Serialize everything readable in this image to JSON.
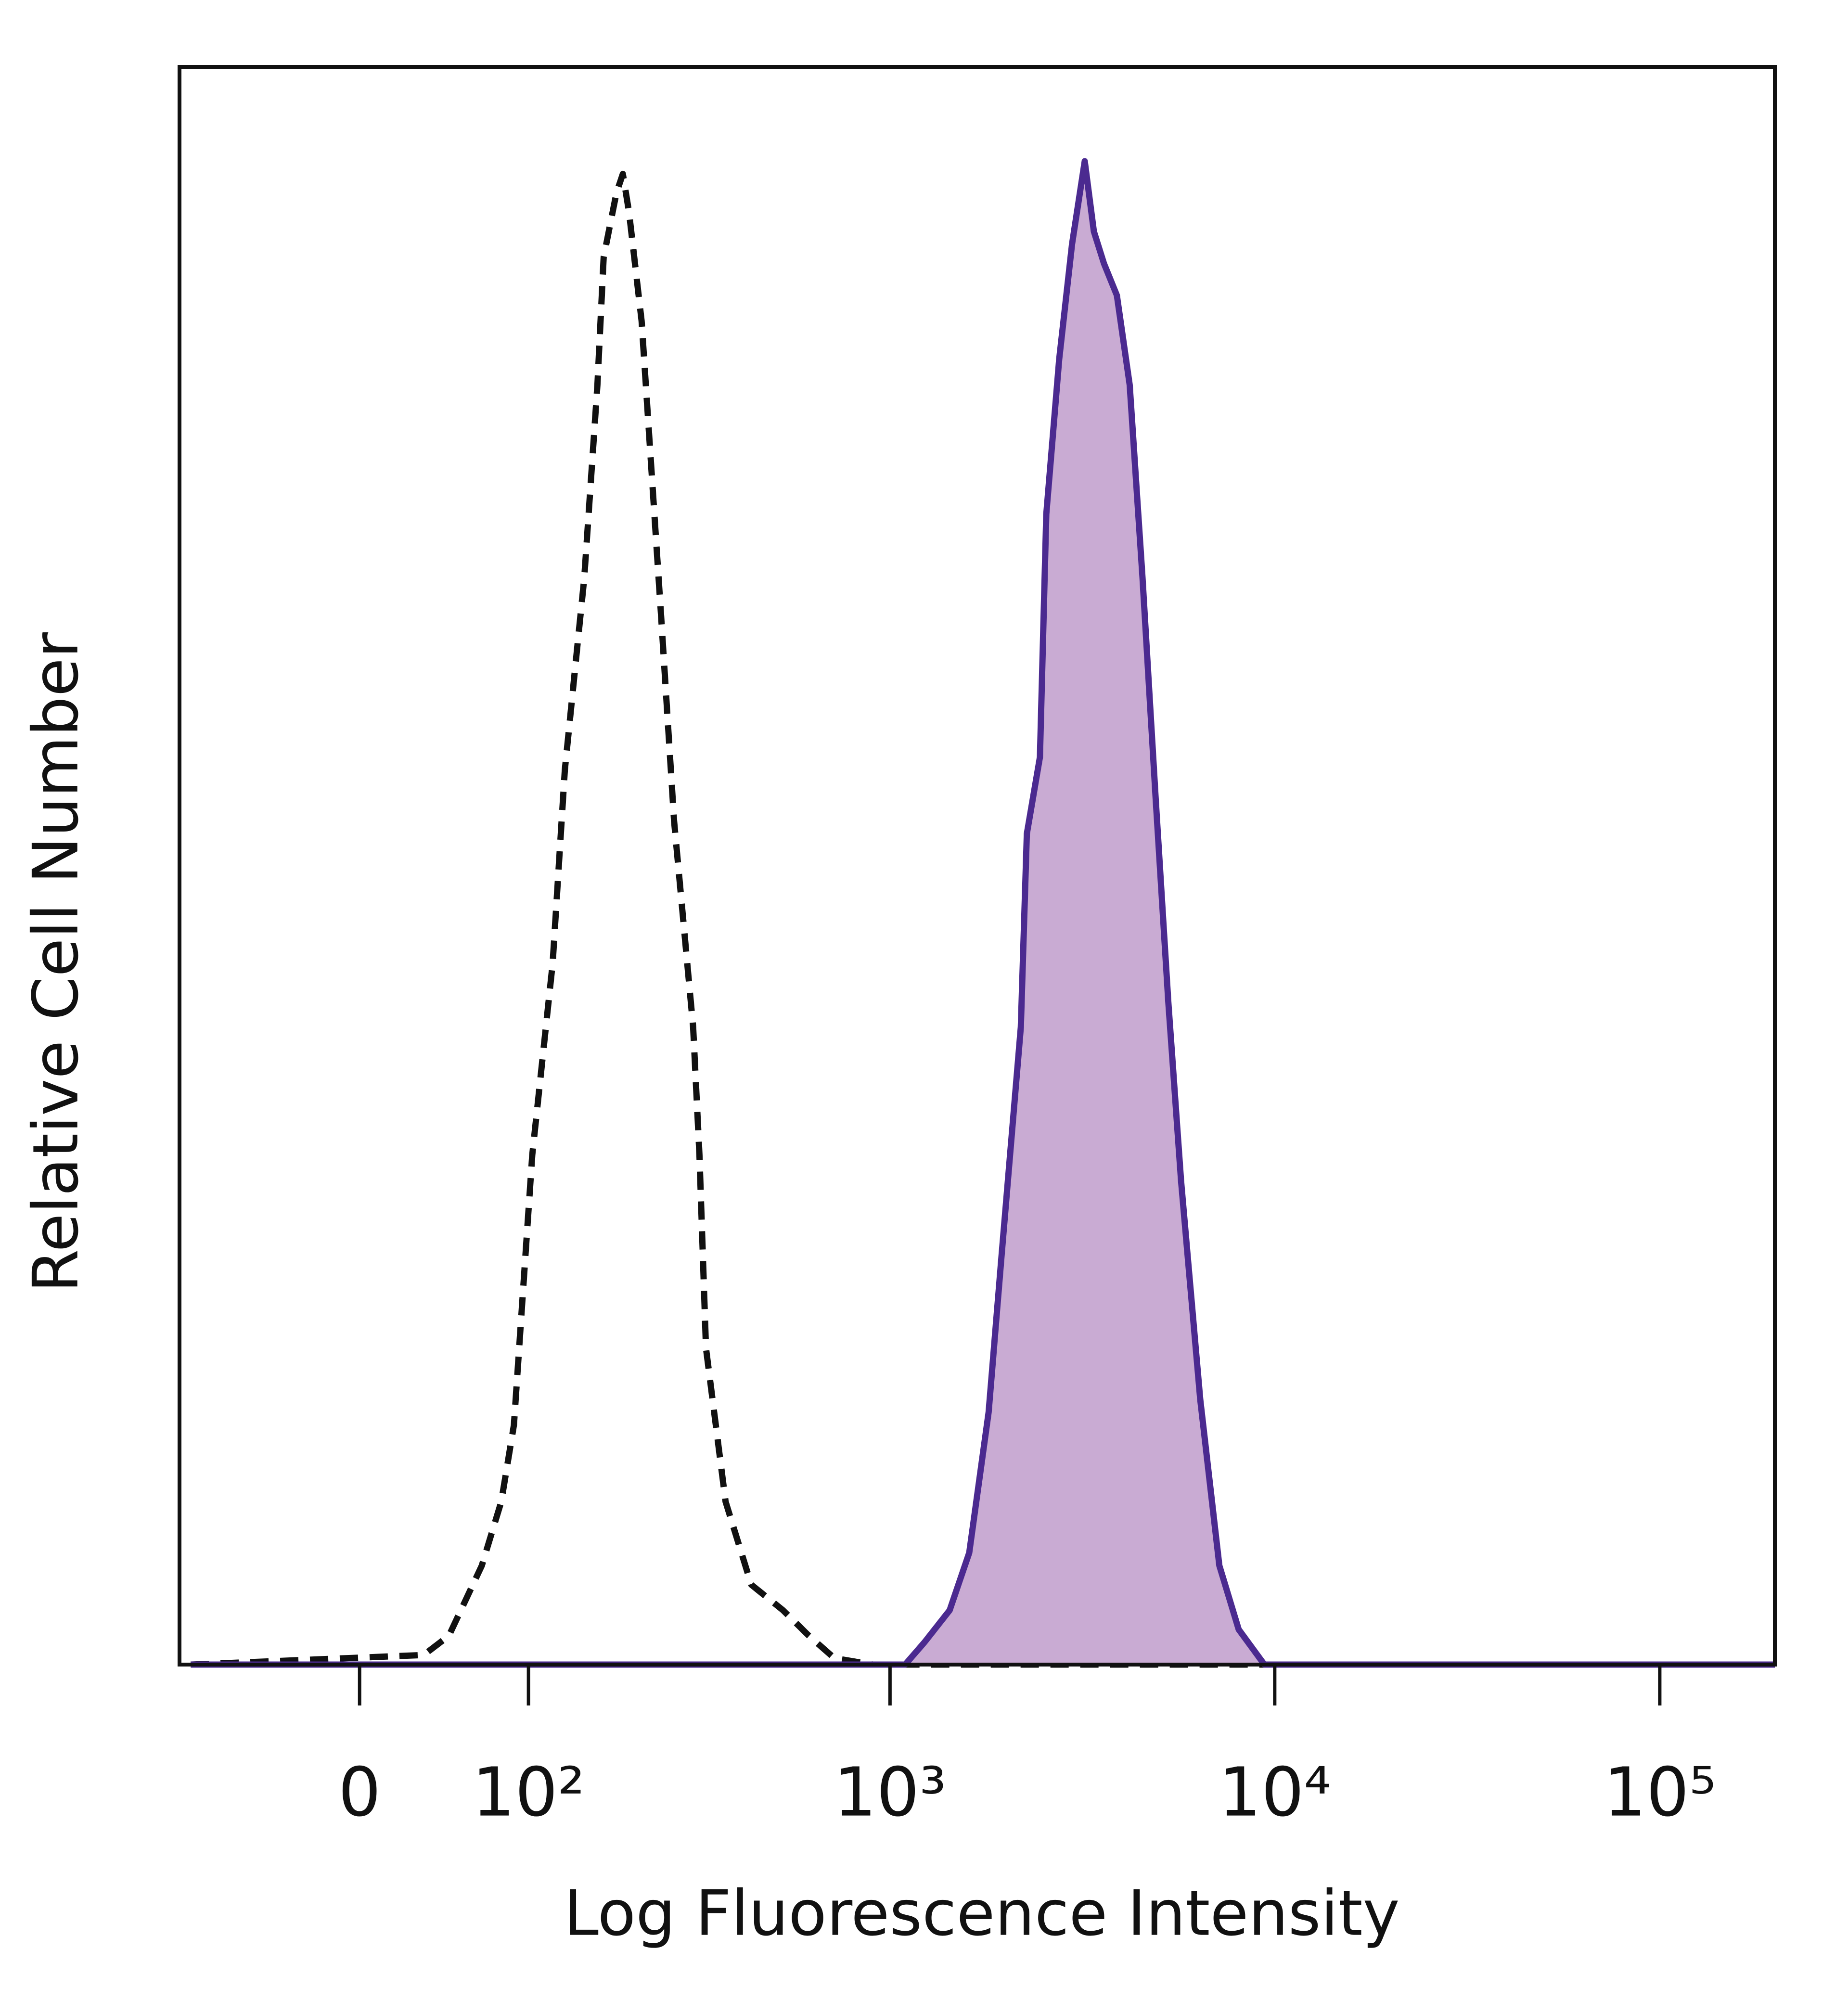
{
  "chart_data": {
    "type": "line",
    "xlabel": "Log Fluorescence Intensity",
    "ylabel": "Relative Cell Number",
    "xscale": "biexponential",
    "xlim": [
      -109,
      199000
    ],
    "xticks": [
      0,
      {
        "value": 100,
        "label": "10²"
      },
      {
        "value": 1000,
        "label": "10³"
      },
      {
        "value": 10000,
        "label": "10⁴"
      },
      {
        "value": 100000,
        "label": "10⁵"
      }
    ],
    "ylim": [
      0,
      100
    ],
    "series": [
      {
        "color": "#111111",
        "dashed": true,
        "x": [
          -100,
          33,
          47,
          67,
          80,
          89,
          103,
          120,
          131,
          150,
          164,
          171,
          186,
          194,
          202,
          219,
          248,
          269,
          303,
          315,
          328,
          370,
          433,
          525,
          614,
          716,
          901,
          199000
        ],
        "values": [
          0,
          0.6,
          1.8,
          6.2,
          10.2,
          15.0,
          31.9,
          43.9,
          56.0,
          68.0,
          80.1,
          88.1,
          92.1,
          93.3,
          90.9,
          84.1,
          65.6,
          52.8,
          39.9,
          31.9,
          19.8,
          10.2,
          5.0,
          3.4,
          1.8,
          0.4,
          0,
          0
        ]
      },
      {
        "color": "#4b2a90",
        "fill": "#c9abd3",
        "dashed": false,
        "x": [
          -100,
          1095,
          1230,
          1430,
          1608,
          1806,
          1950,
          2190,
          2270,
          2455,
          2550,
          2755,
          2975,
          3210,
          3390,
          3600,
          3890,
          4200,
          4535,
          4900,
          5290,
          5710,
          6405,
          7180,
          8060,
          9400,
          199000
        ],
        "values": [
          0,
          0,
          1.4,
          3.4,
          7.0,
          15.8,
          25.5,
          39.9,
          52.0,
          56.8,
          72.0,
          81.7,
          88.9,
          94.1,
          89.7,
          87.7,
          85.7,
          80.1,
          68.0,
          54.4,
          41.5,
          30.3,
          16.6,
          6.2,
          2.2,
          0,
          0
        ]
      }
    ]
  }
}
